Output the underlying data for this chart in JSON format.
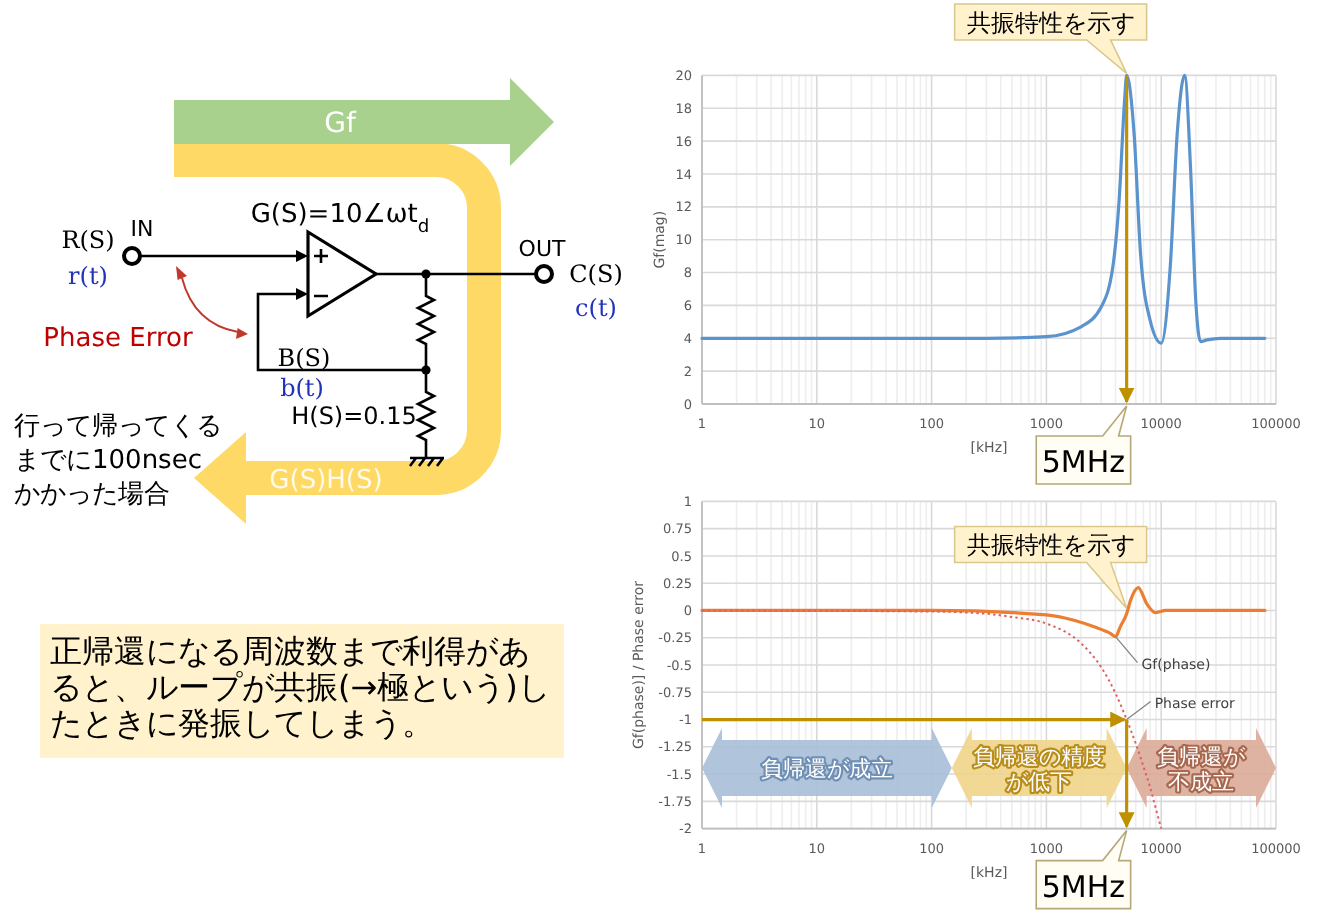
{
  "chart_data": [
    {
      "type": "other",
      "annotations": [
        "Gf",
        "G(S)H(S)",
        "IN",
        "R(S)",
        "r(t)",
        "G(S)=10∠ωt$_{d}$",
        "OUT",
        "C(S)",
        "c(t)",
        "Phase Error",
        "B(S)",
        "b(t)",
        "H(S)=0.15",
        "行って帰ってくるまでに100nsecかかった場合",
        "正帰還になる周波数まで利得があると、ループが共振(→極という)したときに発振してしまう。"
      ]
    },
    {
      "type": "line",
      "xlabel": "[kHz]",
      "ylabel": "Gf(mag)",
      "log": "x",
      "xlim": [
        1,
        100000
      ],
      "xticks": [
        1,
        10,
        100,
        1000,
        10000,
        100000
      ],
      "ylim": [
        0,
        20
      ],
      "yticks": [
        0,
        2,
        4,
        6,
        8,
        10,
        12,
        14,
        16,
        18,
        20
      ],
      "grid": true,
      "x": [
        1,
        10,
        100,
        300,
        1000,
        2000,
        3000,
        3800,
        4300,
        4800,
        5000,
        5800,
        6600,
        8000,
        10000,
        12000,
        13800,
        16000,
        18000,
        20000,
        22000,
        25000,
        33000,
        80000
      ],
      "series": [
        {
          "color": "#5b93cc",
          "values": [
            4,
            4,
            4,
            4,
            4.1,
            4.7,
            5.9,
            8.4,
            12.4,
            18.5,
            20,
            16.5,
            9.2,
            5.1,
            3.7,
            8.4,
            16.5,
            20,
            14.4,
            6.3,
            3.8,
            3.9,
            4,
            4
          ]
        }
      ],
      "ref_lines": [
        {
          "axis": "x",
          "value": 5000,
          "label": "5MHz",
          "color": "#bf9000"
        }
      ],
      "annotations": [
        {
          "text": "共振特性を示す",
          "x": 5000,
          "y": 20
        }
      ]
    },
    {
      "type": "line",
      "xlabel": "[kHz]",
      "ylabel": "Gf(phase)] / Phase error",
      "log": "x",
      "xlim": [
        1,
        100000
      ],
      "xticks": [
        1,
        10,
        100,
        1000,
        10000,
        100000
      ],
      "ylim": [
        -2,
        1
      ],
      "yticks": [
        -2,
        -1.75,
        -1.5,
        -1.25,
        -1,
        -0.75,
        -0.5,
        -0.25,
        0,
        0.25,
        0.5,
        0.75,
        1
      ],
      "grid": true,
      "series": [
        {
          "name": "Gf(phase)",
          "color": "#ed7d31",
          "x": [
            1,
            100,
            1000,
            1740,
            2600,
            3600,
            4000,
            4400,
            5000,
            5400,
            6300,
            7500,
            8900,
            11000,
            80000
          ],
          "values": [
            0,
            0,
            -0.04,
            -0.09,
            -0.15,
            -0.21,
            -0.24,
            -0.15,
            -0.03,
            0.09,
            0.21,
            0.06,
            -0.02,
            0,
            0
          ]
        },
        {
          "name": "Phase error",
          "color": "#e06060",
          "line_style": "dotted",
          "x": [
            1,
            100,
            300,
            500,
            1000,
            2000,
            3000,
            4000,
            5000,
            6000,
            7000,
            8000,
            9000,
            10000
          ],
          "values": [
            0,
            -0.01,
            -0.03,
            -0.06,
            -0.12,
            -0.3,
            -0.52,
            -0.76,
            -1,
            -1.22,
            -1.43,
            -1.62,
            -1.82,
            -2
          ]
        }
      ],
      "ref_lines": [
        {
          "axis": "y",
          "value": -1,
          "color": "#bf9000"
        },
        {
          "axis": "x",
          "value": 5000,
          "label": "5MHz",
          "color": "#bf9000"
        }
      ],
      "annotations": [
        {
          "text": "共振特性を示す",
          "x": 5000,
          "y": 0
        },
        "負帰還が成立",
        "負帰還の精度が低下",
        "負帰還が不成立"
      ]
    }
  ]
}
